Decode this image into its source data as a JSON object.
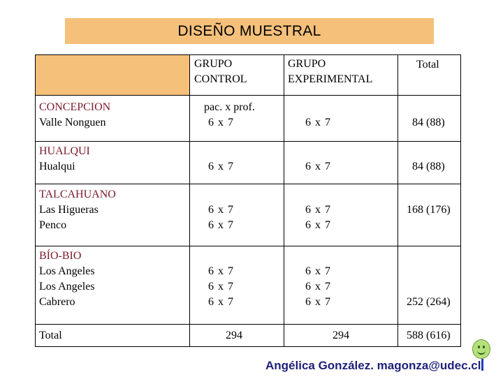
{
  "title": "DISEÑO MUESTRAL",
  "columns": {
    "control": [
      "GRUPO",
      "CONTROL"
    ],
    "experimental": [
      "GRUPO",
      "EXPERIMENTAL"
    ],
    "total": "Total"
  },
  "rows": [
    {
      "region": "CONCEPCION",
      "places": [
        "Valle Nonguen"
      ],
      "control": [
        "pac. x prof.",
        "6 x 7"
      ],
      "experimental": [
        "6 x 7"
      ],
      "total": "84 (88)"
    },
    {
      "region": "HUALQUI",
      "places": [
        "Hualqui"
      ],
      "control": [
        "6 x 7"
      ],
      "experimental": [
        "6 x 7"
      ],
      "total": "84 (88)"
    },
    {
      "region": "TALCAHUANO",
      "places": [
        "Las Higueras",
        "Penco"
      ],
      "control": [
        "6 x 7",
        "6 x 7"
      ],
      "experimental": [
        "6 x 7",
        "6 x 7"
      ],
      "total": "168 (176)"
    },
    {
      "region": "BÍO-BIO",
      "places": [
        "Los Angeles",
        "Los Angeles",
        "Cabrero"
      ],
      "control": [
        "6 x 7",
        "6 x 7",
        "6 x 7"
      ],
      "experimental": [
        "6 x 7",
        "6 x 7",
        "6 x 7"
      ],
      "total": "252 (264)"
    }
  ],
  "totals": {
    "label": "Total",
    "control": "294",
    "experimental": "294",
    "total": "588 (616)"
  },
  "footer": "Angélica González. magonza@udec.cl",
  "colors": {
    "title_bg": "#f5c07a",
    "region_text": "#7a1a2a",
    "footer_text": "#1f1f7a"
  },
  "icons": {
    "smiley": "smiley-face-icon"
  }
}
